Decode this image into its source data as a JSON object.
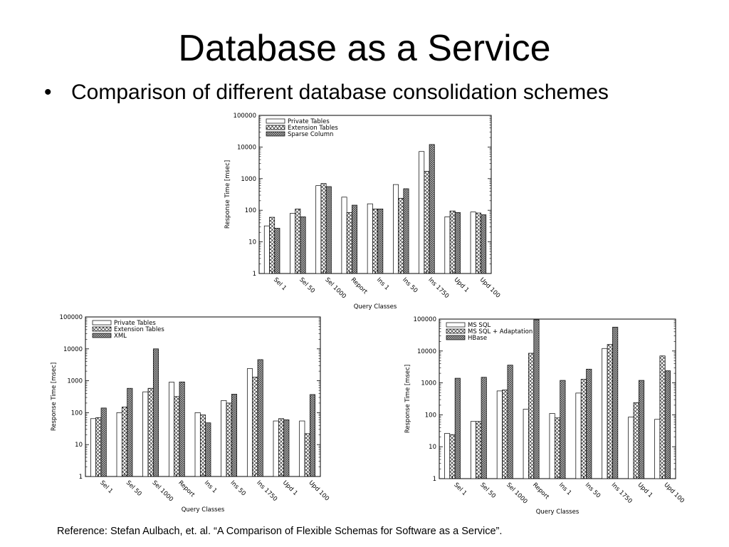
{
  "slide": {
    "title": "Database as a Service",
    "bullet": "Comparison of different database consolidation schemes",
    "reference": "Reference: Stefan Aulbach, et. al. “A Comparison of Flexible Schemas for Software as a Service”."
  },
  "chart_data": [
    {
      "type": "bar",
      "scale": "log",
      "ylim": [
        1,
        100000
      ],
      "xlabel": "Query Classes",
      "ylabel": "Response Time [msec]",
      "categories": [
        "Sel 1",
        "Sel 50",
        "Sel 1000",
        "Report",
        "Ins 1",
        "Ins 50",
        "Ins 1750",
        "Upd 1",
        "Upd 100"
      ],
      "yticks": [
        "1",
        "10",
        "100",
        "1000",
        "10000",
        "100000"
      ],
      "legend_position": "top-left",
      "series": [
        {
          "name": "Private Tables",
          "pattern": "none",
          "values": [
            32,
            80,
            600,
            260,
            160,
            650,
            7200,
            62,
            88
          ]
        },
        {
          "name": "Extension Tables",
          "pattern": "crosshatch",
          "values": [
            60,
            110,
            700,
            85,
            110,
            240,
            1700,
            95,
            82
          ]
        },
        {
          "name": "Sparse Column",
          "pattern": "dense",
          "values": [
            27,
            62,
            560,
            145,
            110,
            480,
            12000,
            85,
            72
          ]
        }
      ]
    },
    {
      "type": "bar",
      "scale": "log",
      "ylim": [
        1,
        100000
      ],
      "xlabel": "Query Classes",
      "ylabel": "Response Time [msec]",
      "categories": [
        "Sel 1",
        "Sel 50",
        "Sel 1000",
        "Report",
        "Ins 1",
        "Ins 50",
        "Ins 1750",
        "Upd 1",
        "Upd 100"
      ],
      "yticks": [
        "1",
        "10",
        "100",
        "1000",
        "10000",
        "100000"
      ],
      "legend_position": "top-left",
      "series": [
        {
          "name": "Private Tables",
          "pattern": "none",
          "values": [
            65,
            100,
            450,
            900,
            100,
            240,
            2400,
            55,
            55
          ]
        },
        {
          "name": "Extension Tables",
          "pattern": "crosshatch",
          "values": [
            70,
            150,
            580,
            320,
            85,
            200,
            1300,
            65,
            22
          ]
        },
        {
          "name": "XML",
          "pattern": "dense",
          "values": [
            140,
            580,
            10000,
            920,
            48,
            380,
            4600,
            60,
            370
          ]
        }
      ]
    },
    {
      "type": "bar",
      "scale": "log",
      "ylim": [
        1,
        100000
      ],
      "xlabel": "Query Classes",
      "ylabel": "Response Time [msec]",
      "categories": [
        "Sel 1",
        "Sel 50",
        "Sel 1000",
        "Report",
        "Ins 1",
        "Ins 50",
        "Ins 1750",
        "Upd 1",
        "Upd 100"
      ],
      "yticks": [
        "1",
        "10",
        "100",
        "1000",
        "10000",
        "100000"
      ],
      "legend_position": "top-left",
      "series": [
        {
          "name": "MS SQL",
          "pattern": "none",
          "values": [
            26,
            62,
            560,
            150,
            110,
            480,
            12000,
            85,
            72
          ]
        },
        {
          "name": "MS SQL + Adaptation",
          "pattern": "crosshatch",
          "values": [
            24,
            62,
            600,
            8500,
            80,
            1300,
            16000,
            240,
            7000
          ]
        },
        {
          "name": "HBase",
          "pattern": "dense",
          "values": [
            1400,
            1500,
            3600,
            95000,
            1200,
            2700,
            56000,
            1200,
            2400
          ]
        }
      ]
    }
  ]
}
